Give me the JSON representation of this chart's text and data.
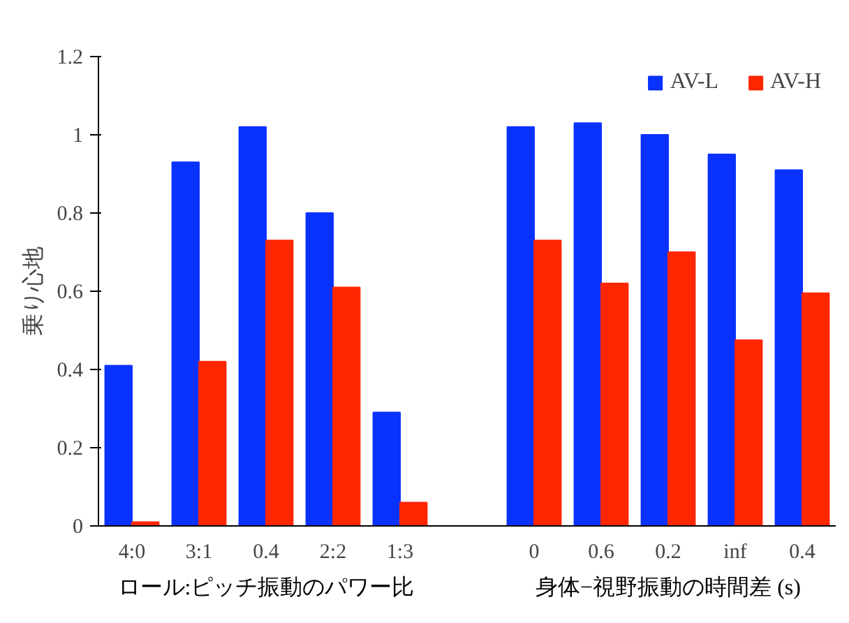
{
  "chart_data": {
    "type": "bar",
    "ylabel": "乗り心地",
    "categories": [
      "4:0",
      "3:1",
      "0.4",
      "2:2",
      "1:3",
      null,
      "0",
      "0.6",
      "0.2",
      "inf",
      "0.4"
    ],
    "series": [
      {
        "name": "AV-L",
        "color": "#0a32ff",
        "values": [
          0.41,
          0.93,
          1.02,
          0.8,
          0.29,
          null,
          1.02,
          1.03,
          1.0,
          0.95,
          0.91
        ]
      },
      {
        "name": "AV-H",
        "color": "#ff2600",
        "values": [
          0.01,
          0.42,
          0.73,
          0.61,
          0.06,
          null,
          0.73,
          0.62,
          0.7,
          0.475,
          0.595
        ]
      }
    ],
    "ylim": [
      0,
      1.2
    ],
    "yticks": [
      0,
      0.2,
      0.4,
      0.6,
      0.8,
      1,
      1.2
    ],
    "annotations": [
      "ロール:ピッチ振動のパワー比",
      "身体−視野振動の時間差 (s)"
    ],
    "legend": "top right",
    "grid": false
  }
}
